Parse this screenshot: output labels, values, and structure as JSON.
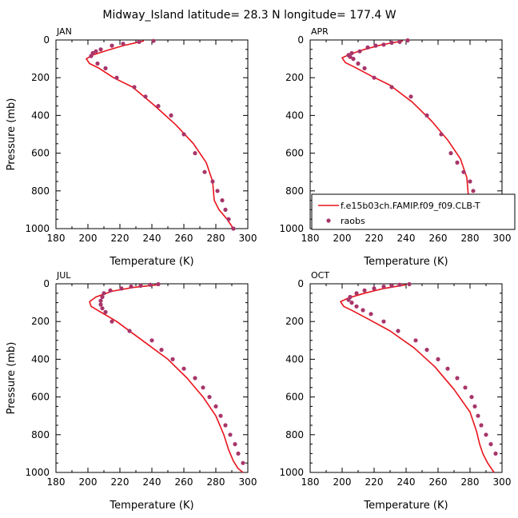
{
  "title": "Midway_Island   latitude= 28.3 N longitude= 177.4 W",
  "legend": {
    "model_label": "f.e15b03ch.FAMIP.f09_f09.CLB-T",
    "obs_label": "raobs",
    "placement": "lower-right of APR panel"
  },
  "colors": {
    "model_line": "#e8141c",
    "obs_marker": "#a8356a",
    "axes": "#000000"
  },
  "chart_data": [
    {
      "type": "line",
      "panel": "JAN",
      "title": "JAN",
      "xlabel": "Temperature (K)",
      "ylabel": "Pressure (mb)",
      "xlim": [
        180,
        300
      ],
      "ylim": [
        1000,
        0
      ],
      "xticks": [
        "180",
        "200",
        "220",
        "240",
        "260",
        "280",
        "300"
      ],
      "yticks": [
        "0",
        "200",
        "400",
        "600",
        "800",
        "1000"
      ],
      "series": [
        {
          "name": "f.e15b03ch.FAMIP.f09_f09.CLB-T",
          "x": [
            235,
            222,
            212,
            203,
            199,
            201,
            207,
            216,
            228,
            242,
            255,
            266,
            274,
            278,
            279,
            282,
            287,
            291
          ],
          "y": [
            5,
            30,
            55,
            80,
            100,
            125,
            150,
            200,
            250,
            350,
            450,
            550,
            650,
            750,
            850,
            900,
            950,
            1000
          ]
        },
        {
          "name": "raobs",
          "x": [
            241,
            232,
            222,
            215,
            208,
            205,
            203,
            202,
            206,
            211,
            218,
            229,
            236,
            244,
            252,
            260,
            267,
            273,
            278,
            281,
            284,
            286,
            288,
            291
          ],
          "y": [
            5,
            10,
            20,
            30,
            50,
            60,
            70,
            85,
            125,
            150,
            200,
            250,
            300,
            350,
            400,
            500,
            600,
            700,
            750,
            800,
            850,
            900,
            950,
            1000
          ]
        }
      ]
    },
    {
      "type": "line",
      "panel": "APR",
      "title": "APR",
      "xlabel": "Temperature (K)",
      "ylabel": "",
      "xlim": [
        180,
        300
      ],
      "ylim": [
        1000,
        0
      ],
      "xticks": [
        "180",
        "200",
        "220",
        "240",
        "260",
        "280",
        "300"
      ],
      "yticks": [
        "0",
        "200",
        "400",
        "600",
        "800",
        "1000"
      ],
      "series": [
        {
          "name": "f.e15b03ch.FAMIP.f09_f09.CLB-T",
          "x": [
            238,
            225,
            214,
            205,
            200,
            202,
            208,
            218,
            230,
            244,
            256,
            266,
            274,
            278,
            279,
            281,
            286,
            290
          ],
          "y": [
            5,
            25,
            50,
            75,
            95,
            120,
            145,
            190,
            240,
            330,
            430,
            530,
            630,
            730,
            830,
            880,
            940,
            1000
          ]
        },
        {
          "name": "raobs",
          "x": [
            241,
            236,
            231,
            226,
            221,
            216,
            211,
            206,
            204,
            205,
            207,
            210,
            214,
            220,
            231,
            243,
            253,
            262,
            268,
            272,
            276,
            280,
            282,
            284,
            286,
            289
          ],
          "y": [
            2,
            10,
            15,
            25,
            30,
            40,
            60,
            70,
            80,
            90,
            100,
            125,
            150,
            200,
            250,
            300,
            400,
            500,
            600,
            650,
            700,
            750,
            800,
            850,
            900,
            950
          ]
        }
      ]
    },
    {
      "type": "line",
      "panel": "JUL",
      "title": "JUL",
      "xlabel": "Temperature (K)",
      "ylabel": "Pressure (mb)",
      "xlim": [
        180,
        300
      ],
      "ylim": [
        1000,
        0
      ],
      "xticks": [
        "180",
        "200",
        "220",
        "240",
        "260",
        "280",
        "300"
      ],
      "yticks": [
        "0",
        "200",
        "400",
        "600",
        "800",
        "1000"
      ],
      "series": [
        {
          "name": "f.e15b03ch.FAMIP.f09_f09.CLB-T",
          "x": [
            244,
            228,
            215,
            205,
            201,
            202,
            208,
            218,
            234,
            250,
            262,
            272,
            280,
            285,
            288,
            291,
            294,
            297
          ],
          "y": [
            5,
            20,
            40,
            70,
            95,
            120,
            150,
            200,
            300,
            400,
            500,
            600,
            700,
            800,
            880,
            940,
            980,
            1000
          ]
        },
        {
          "name": "raobs",
          "x": [
            244,
            239,
            233,
            227,
            221,
            214,
            210,
            209,
            208,
            208,
            209,
            211,
            215,
            226,
            240,
            246,
            253,
            260,
            267,
            272,
            276,
            280,
            283,
            286,
            289,
            292,
            294,
            297
          ],
          "y": [
            2,
            5,
            10,
            15,
            25,
            35,
            50,
            70,
            90,
            110,
            130,
            150,
            200,
            250,
            300,
            350,
            400,
            450,
            500,
            550,
            600,
            650,
            700,
            750,
            800,
            850,
            900,
            950
          ]
        }
      ]
    },
    {
      "type": "line",
      "panel": "OCT",
      "title": "OCT",
      "xlabel": "Temperature (K)",
      "ylabel": "",
      "xlim": [
        180,
        300
      ],
      "ylim": [
        1000,
        0
      ],
      "xticks": [
        "180",
        "200",
        "220",
        "240",
        "260",
        "280",
        "300"
      ],
      "yticks": [
        "0",
        "200",
        "400",
        "600",
        "800",
        "1000"
      ],
      "series": [
        {
          "name": "f.e15b03ch.FAMIP.f09_f09.CLB-T",
          "x": [
            240,
            226,
            214,
            204,
            199,
            201,
            207,
            217,
            230,
            245,
            258,
            270,
            280,
            284,
            286,
            288,
            291,
            295
          ],
          "y": [
            5,
            25,
            50,
            75,
            95,
            120,
            145,
            190,
            250,
            340,
            440,
            560,
            680,
            780,
            850,
            900,
            950,
            1000
          ]
        },
        {
          "name": "raobs",
          "x": [
            242,
            236,
            231,
            226,
            220,
            214,
            209,
            205,
            204,
            206,
            209,
            213,
            218,
            226,
            235,
            246,
            253,
            260,
            266,
            272,
            277,
            281,
            283,
            285,
            287,
            290,
            293,
            296
          ],
          "y": [
            2,
            5,
            10,
            15,
            25,
            35,
            50,
            70,
            85,
            100,
            120,
            140,
            160,
            200,
            250,
            300,
            350,
            400,
            450,
            500,
            550,
            600,
            650,
            700,
            750,
            800,
            850,
            900
          ]
        }
      ]
    }
  ]
}
